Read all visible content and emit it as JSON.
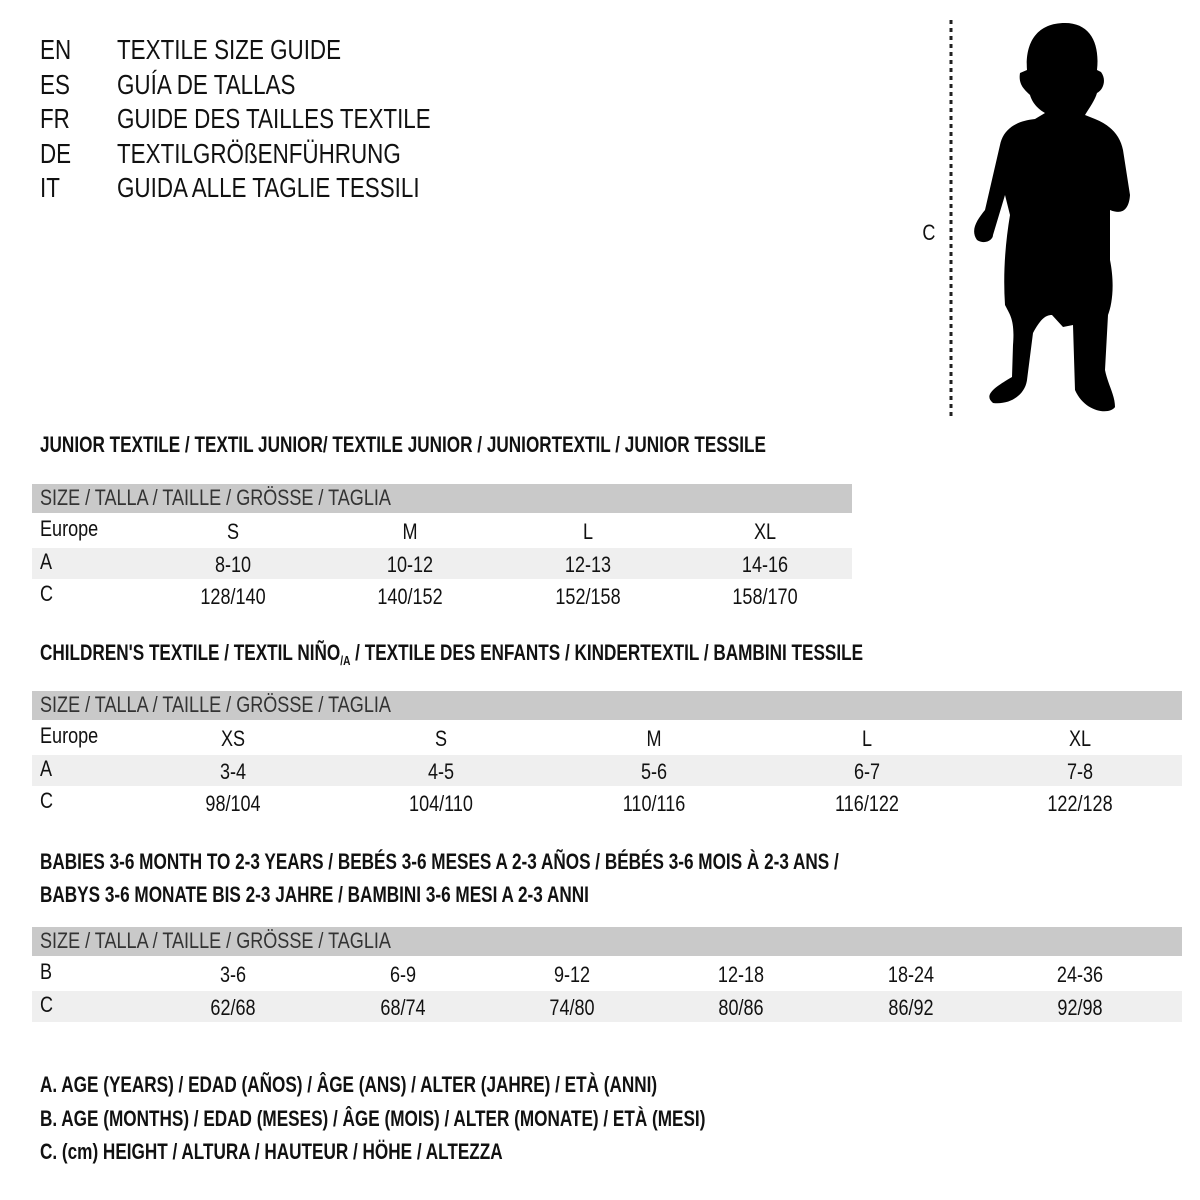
{
  "titles": [
    {
      "code": "EN",
      "text": "TEXTILE SIZE GUIDE"
    },
    {
      "code": "ES",
      "text": "GUÍA DE TALLAS"
    },
    {
      "code": "FR",
      "text": "GUIDE DES TAILLES TEXTILE"
    },
    {
      "code": "DE",
      "text": "TEXTILGRÖßENFÜHRUNG"
    },
    {
      "code": "IT",
      "text": "GUIDA ALLE TAGLIE TESSILI"
    }
  ],
  "figure": {
    "measure_label": "C",
    "icon": "child-silhouette-icon"
  },
  "size_header": "SIZE / TALLA / TAILLE / GRÖSSE / TAGLIA",
  "junior": {
    "heading": "JUNIOR TEXTILE / TEXTIL JUNIOR/ TEXTILE JUNIOR / JUNIORTEXTIL / JUNIOR TESSILE",
    "rows": [
      {
        "label": "Europe",
        "values": [
          "S",
          "M",
          "L",
          "XL"
        ]
      },
      {
        "label": "A",
        "values": [
          "8-10",
          "10-12",
          "12-13",
          "14-16"
        ]
      },
      {
        "label": "C",
        "values": [
          "128/140",
          "140/152",
          "152/158",
          "158/170"
        ]
      }
    ]
  },
  "children": {
    "heading_pre": "CHILDREN'S TEXTILE / TEXTIL NIÑO",
    "heading_sub": "/A",
    "heading_post": " / TEXTILE DES ENFANTS / KINDERTEXTIL / BAMBINI TESSILE",
    "rows": [
      {
        "label": "Europe",
        "values": [
          "XS",
          "S",
          "M",
          "L",
          "XL"
        ]
      },
      {
        "label": "A",
        "values": [
          "3-4",
          "4-5",
          "5-6",
          "6-7",
          "7-8"
        ]
      },
      {
        "label": "C",
        "values": [
          "98/104",
          "104/110",
          "110/116",
          "116/122",
          "122/128"
        ]
      }
    ]
  },
  "babies": {
    "heading_line1": "BABIES 3-6 MONTH TO 2-3 YEARS / BEBÉS 3-6 MESES A 2-3 AÑOS / BÉBÉS 3-6 MOIS À 2-3 ANS /",
    "heading_line2": "BABYS 3-6 MONATE BIS 2-3 JAHRE / BAMBINI 3-6 MESI A 2-3 ANNI",
    "rows": [
      {
        "label": "B",
        "values": [
          "3-6",
          "6-9",
          "9-12",
          "12-18",
          "18-24",
          "24-36"
        ]
      },
      {
        "label": "C",
        "values": [
          "62/68",
          "68/74",
          "74/80",
          "80/86",
          "86/92",
          "92/98"
        ]
      }
    ]
  },
  "legend": [
    "A. AGE (YEARS) / EDAD (AÑOS) / ÂGE (ANS) / ALTER (JAHRE) / ETÀ (ANNI)",
    "B. AGE (MONTHS) / EDAD (MESES) / ÂGE (MOIS) / ALTER (MONATE) / ETÀ (MESI)",
    "C. (cm) HEIGHT / ALTURA / HAUTEUR / HÖHE / ALTEZZA"
  ],
  "colors": {
    "header_bar": "#c9c9c9",
    "row_shade": "#efefef"
  }
}
